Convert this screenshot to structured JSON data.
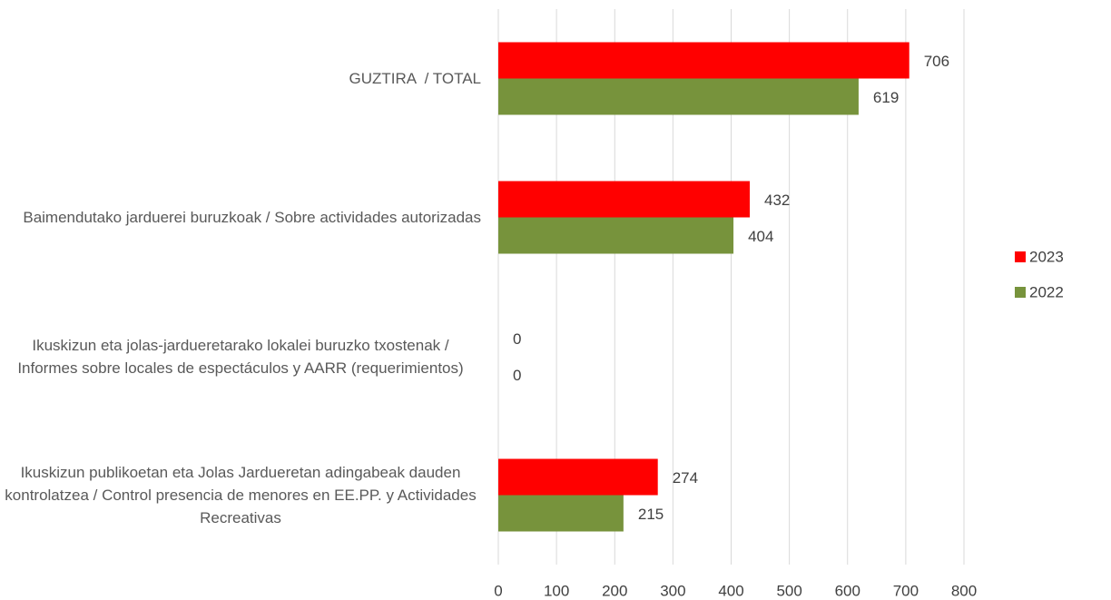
{
  "chart_data": {
    "type": "bar",
    "orientation": "horizontal",
    "categories": [
      "GUZTIRA  / TOTAL",
      "Baimendutako jarduerei buruzkoak / Sobre actividades autorizadas",
      "Ikuskizun eta jolas-jardueretarako lokalei buruzko txostenak / Informes sobre locales de espectáculos y AARR (requerimientos)",
      "Ikuskizun publikoetan eta Jolas Jardueretan adingabeak dauden kontrolatzea / Control presencia de menores en EE.PP. y Actividades Recreativas"
    ],
    "series": [
      {
        "name": "2023",
        "color": "#ff0000",
        "values": [
          706,
          432,
          0,
          274
        ]
      },
      {
        "name": "2022",
        "color": "#77933c",
        "values": [
          619,
          404,
          0,
          215
        ]
      }
    ],
    "xlim": [
      0,
      800
    ],
    "xticks": [
      0,
      100,
      200,
      300,
      400,
      500,
      600,
      700,
      800
    ],
    "grid": true,
    "legend": "right"
  }
}
